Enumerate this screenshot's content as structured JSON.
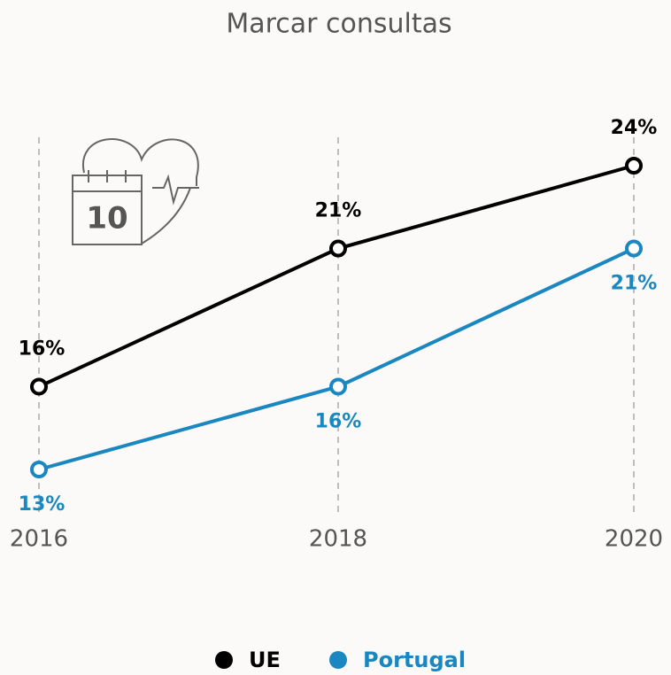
{
  "chart_data": {
    "type": "line",
    "title": "Marcar consultas",
    "icon_label": "10",
    "categories": [
      "2016",
      "2018",
      "2020"
    ],
    "series": [
      {
        "name": "UE",
        "color": "#000000",
        "values": [
          16,
          21,
          24
        ],
        "value_labels": [
          "16%",
          "21%",
          "24%"
        ]
      },
      {
        "name": "Portugal",
        "color": "#1a87c0",
        "values": [
          13,
          16,
          21
        ],
        "value_labels": [
          "13%",
          "16%",
          "21%"
        ]
      }
    ]
  }
}
